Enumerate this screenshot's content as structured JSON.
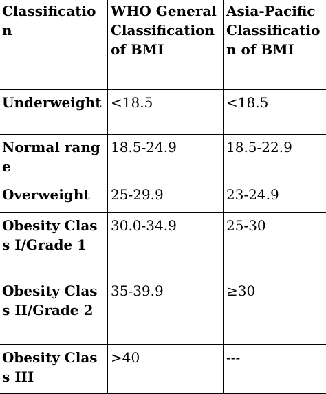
{
  "table": {
    "headers": [
      "Classification",
      "WHO General Classification of BMI",
      "Asia-Pacific Classification of BMI"
    ],
    "rows": [
      {
        "label": "Underweight",
        "who": "<18.5",
        "asia": "<18.5"
      },
      {
        "label": "Normal range",
        "who": "18.5-24.9",
        "asia": "18.5-22.9"
      },
      {
        "label": "Overweight",
        "who": "25-29.9",
        "asia": "23-24.9"
      },
      {
        "label": "Obesity Class I/Grade 1",
        "who": "30.0-34.9",
        "asia": "25-30"
      },
      {
        "label": "Obesity Class II/Grade 2",
        "who": "35-39.9",
        "asia": "≥30"
      },
      {
        "label": "Obesity Class III",
        "who": ">40",
        "asia": "---"
      }
    ]
  }
}
